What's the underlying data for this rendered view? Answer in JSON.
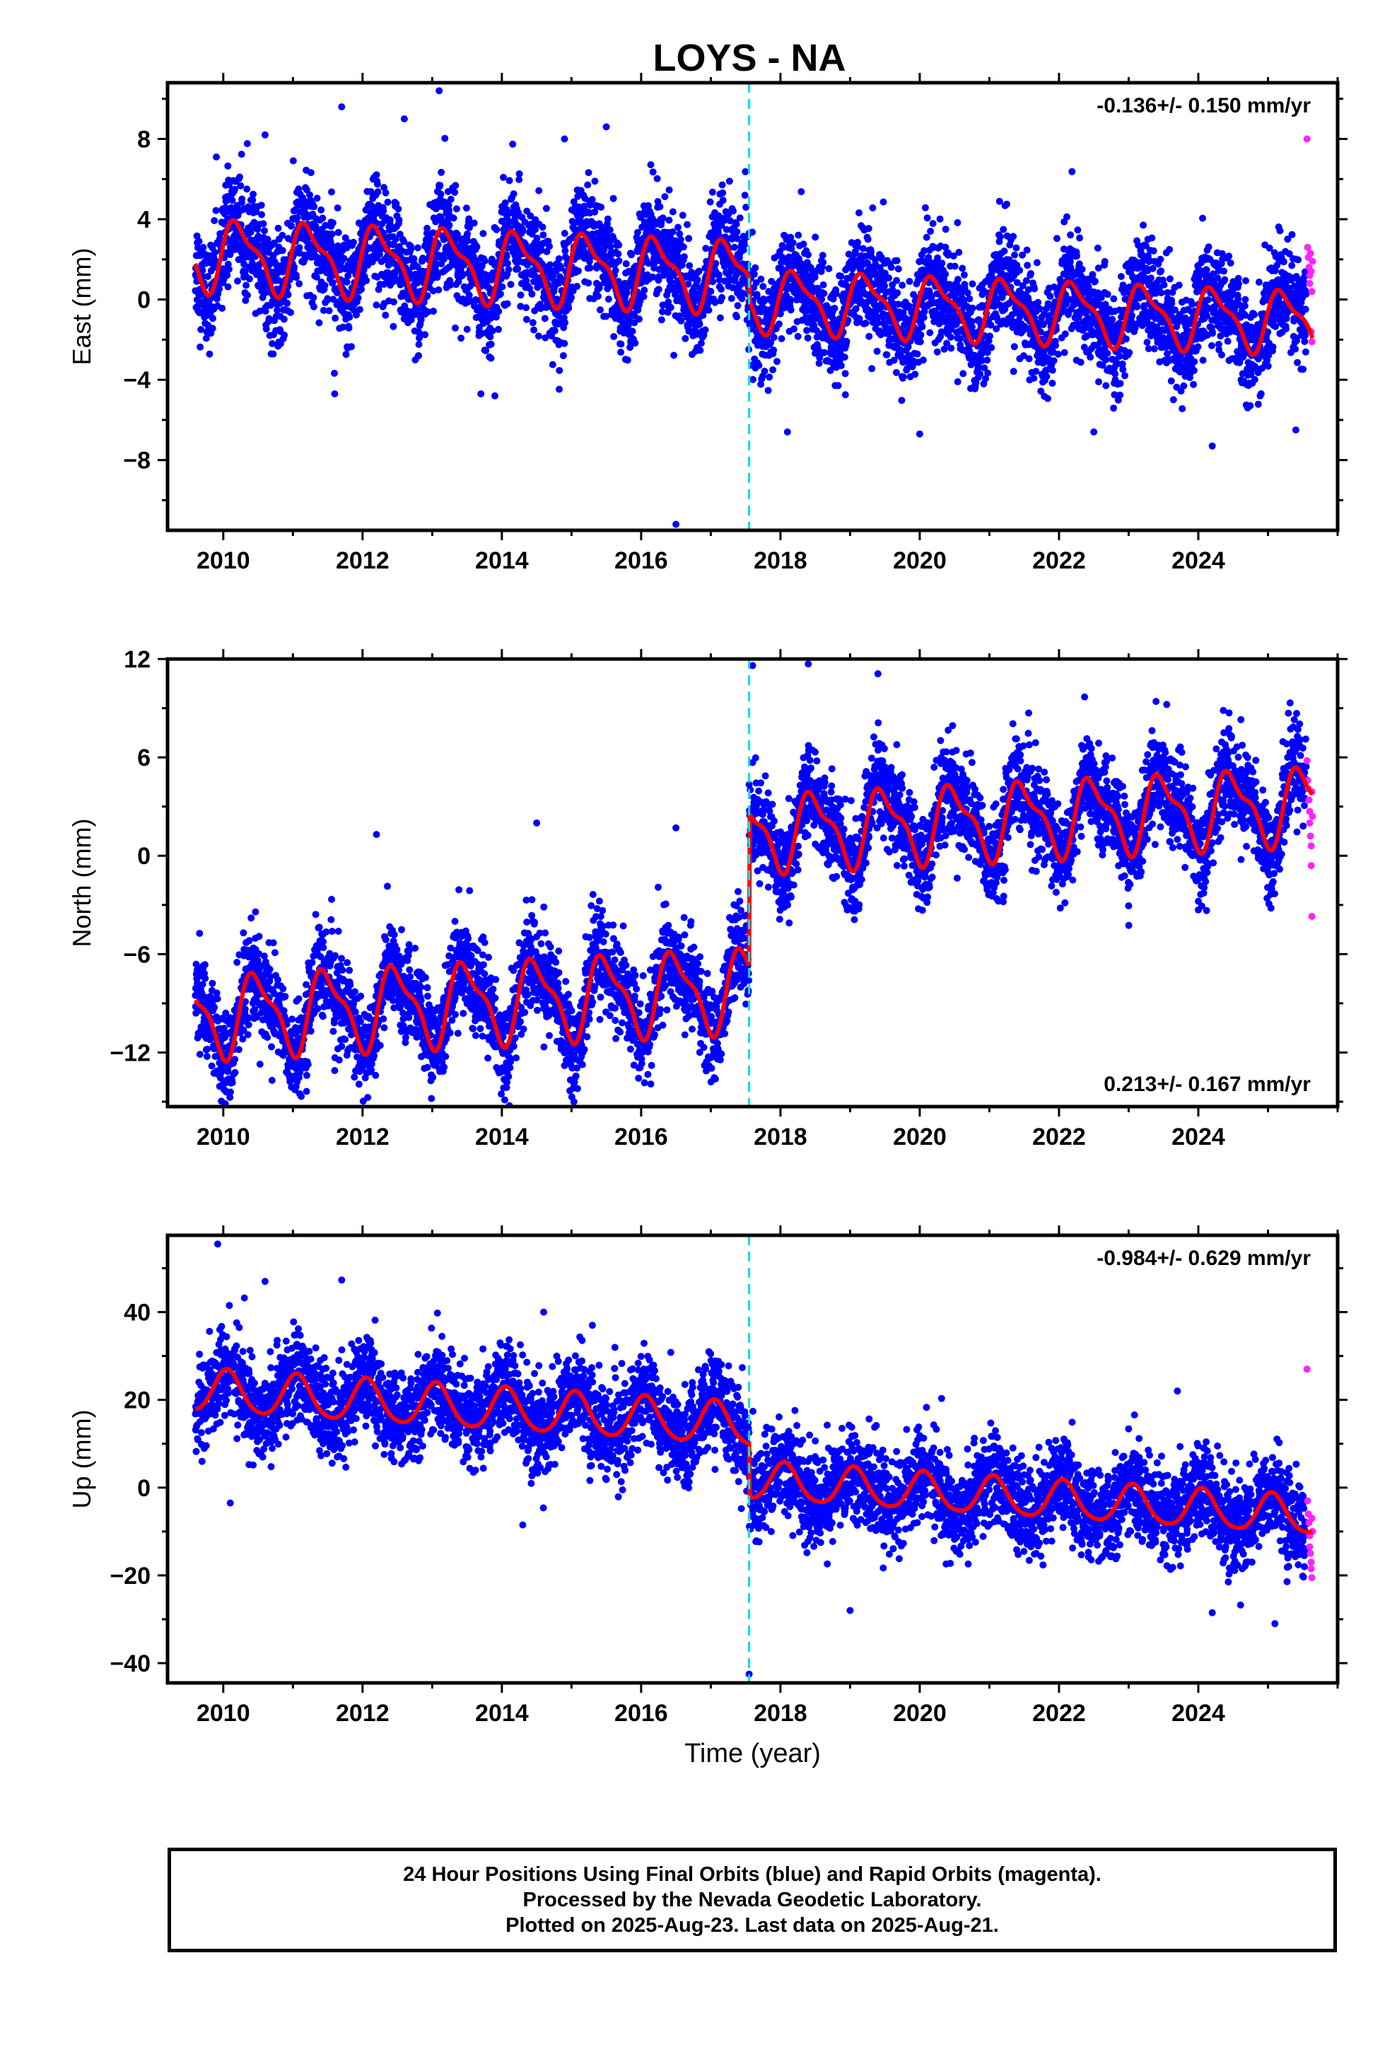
{
  "title": "LOYS - NA",
  "colors": {
    "final_orbits": "#0000ff",
    "rapid_orbits": "#ff22ff",
    "model_fit": "#ff0000",
    "offset_line": "#00e0e0",
    "frame": "#000000"
  },
  "x_axis_label": "Time (year)",
  "footer": {
    "line1": "24 Hour Positions Using Final Orbits (blue) and Rapid Orbits (magenta).",
    "line2": "Processed by the Nevada Geodetic Laboratory.",
    "line3": "Plotted on 2025-Aug-23. Last data on 2025-Aug-21."
  },
  "chart_data": [
    {
      "type": "scatter",
      "ylabel": "East (mm)",
      "rate_label": "-0.136+/- 0.150 mm/yr",
      "rate_position": "top-right",
      "xlim": [
        2009.2,
        2026.0
      ],
      "ylim": [
        -11.5,
        10.8
      ],
      "xticks": [
        2010,
        2012,
        2014,
        2016,
        2018,
        2020,
        2022,
        2024
      ],
      "yticks": [
        -8,
        -4,
        0,
        4,
        8
      ],
      "ytick_labels": [
        "−8",
        "−4",
        "0",
        "4",
        "8"
      ],
      "data_start": 2009.6,
      "data_end": 2025.64,
      "rapid_start": 2025.55,
      "offset_epoch": 2017.55,
      "fit": {
        "before": {
          "intercept": 1.2,
          "slope": -0.136,
          "annual_amp": 1.6,
          "annual_phase": 0.1,
          "semiannual_amp": 0.6,
          "semiannual_phase": 0.6
        },
        "after": {
          "intercept": 0.0,
          "slope": -0.136,
          "annual_amp": 1.4,
          "annual_phase": 0.1,
          "semiannual_amp": 0.5,
          "semiannual_phase": 0.6
        },
        "step": 0.0
      },
      "scatter_sd": 1.3,
      "outliers": [
        {
          "x": 2009.9,
          "y": 7.1
        },
        {
          "x": 2010.6,
          "y": 8.2
        },
        {
          "x": 2011.7,
          "y": 9.6
        },
        {
          "x": 2012.6,
          "y": 9.0
        },
        {
          "x": 2013.1,
          "y": 10.4
        },
        {
          "x": 2014.9,
          "y": 8.0
        },
        {
          "x": 2015.5,
          "y": 8.6
        },
        {
          "x": 2016.5,
          "y": -11.2
        },
        {
          "x": 2011.6,
          "y": -4.7
        },
        {
          "x": 2013.9,
          "y": -4.8
        },
        {
          "x": 2018.1,
          "y": -6.6
        },
        {
          "x": 2024.2,
          "y": -7.3
        },
        {
          "x": 2020.0,
          "y": -6.7
        },
        {
          "x": 2022.5,
          "y": -6.6
        },
        {
          "x": 2025.4,
          "y": -6.5
        }
      ],
      "rapid_points": [
        {
          "x": 2025.56,
          "y": 8.0
        },
        {
          "x": 2025.57,
          "y": 2.6
        },
        {
          "x": 2025.58,
          "y": 2.1
        },
        {
          "x": 2025.59,
          "y": 1.6
        },
        {
          "x": 2025.6,
          "y": 1.2
        },
        {
          "x": 2025.6,
          "y": 0.8
        },
        {
          "x": 2025.61,
          "y": 2.3
        },
        {
          "x": 2025.62,
          "y": 1.4
        },
        {
          "x": 2025.62,
          "y": -1.6
        },
        {
          "x": 2025.63,
          "y": -2.1
        },
        {
          "x": 2025.63,
          "y": 0.4
        },
        {
          "x": 2025.64,
          "y": 1.9
        }
      ]
    },
    {
      "type": "scatter",
      "ylabel": "North (mm)",
      "rate_label": "0.213+/- 0.167 mm/yr",
      "rate_position": "bottom-right",
      "xlim": [
        2009.2,
        2026.0
      ],
      "ylim": [
        -15.3,
        12.0
      ],
      "xticks": [
        2010,
        2012,
        2014,
        2016,
        2018,
        2020,
        2022,
        2024
      ],
      "yticks": [
        -12,
        -6,
        0,
        6,
        12
      ],
      "ytick_labels": [
        "−12",
        "−6",
        "0",
        "6",
        "12"
      ],
      "data_start": 2009.6,
      "data_end": 2025.64,
      "rapid_start": 2025.55,
      "offset_epoch": 2017.55,
      "fit": {
        "before": {
          "intercept": -8.1,
          "slope": 0.213,
          "annual_amp": 2.3,
          "annual_phase": -1.5,
          "semiannual_amp": 0.8,
          "semiannual_phase": -2.6
        },
        "after": {
          "intercept": 1.4,
          "slope": 0.213,
          "annual_amp": 2.1,
          "annual_phase": -1.5,
          "semiannual_amp": 0.8,
          "semiannual_phase": -2.6
        },
        "step": 8.0
      },
      "scatter_sd": 1.4,
      "outliers": [
        {
          "x": 2010.0,
          "y": -13.9
        },
        {
          "x": 2010.7,
          "y": -13.7
        },
        {
          "x": 2011.6,
          "y": -13.1
        },
        {
          "x": 2012.2,
          "y": 1.3
        },
        {
          "x": 2014.5,
          "y": 2.0
        },
        {
          "x": 2014.9,
          "y": -12.8
        },
        {
          "x": 2016.5,
          "y": 1.7
        },
        {
          "x": 2017.6,
          "y": 11.6
        },
        {
          "x": 2018.4,
          "y": 11.7
        },
        {
          "x": 2019.4,
          "y": 11.1
        },
        {
          "x": 2021.2,
          "y": -2.8
        },
        {
          "x": 2024.0,
          "y": -3.3
        }
      ],
      "rapid_points": [
        {
          "x": 2025.56,
          "y": 5.8
        },
        {
          "x": 2025.57,
          "y": 4.6
        },
        {
          "x": 2025.58,
          "y": 4.1
        },
        {
          "x": 2025.59,
          "y": 3.4
        },
        {
          "x": 2025.6,
          "y": 2.7
        },
        {
          "x": 2025.6,
          "y": 2.0
        },
        {
          "x": 2025.61,
          "y": 1.2
        },
        {
          "x": 2025.62,
          "y": 0.6
        },
        {
          "x": 2025.62,
          "y": -0.6
        },
        {
          "x": 2025.63,
          "y": -3.7
        },
        {
          "x": 2025.63,
          "y": 3.9
        },
        {
          "x": 2025.64,
          "y": 2.4
        }
      ]
    },
    {
      "type": "scatter",
      "ylabel": "Up (mm)",
      "rate_label": "-0.984+/- 0.629 mm/yr",
      "rate_position": "top-right",
      "xlim": [
        2009.2,
        2026.0
      ],
      "ylim": [
        -44.5,
        57.5
      ],
      "xticks": [
        2010,
        2012,
        2014,
        2016,
        2018,
        2020,
        2022,
        2024
      ],
      "yticks": [
        -40,
        -20,
        0,
        20,
        40
      ],
      "ytick_labels": [
        "−40",
        "−20",
        "0",
        "20",
        "40"
      ],
      "x_axis_title": true,
      "data_start": 2009.6,
      "data_end": 2025.64,
      "rapid_start": 2025.55,
      "offset_epoch": 2017.55,
      "fit": {
        "before": {
          "intercept": 14.3,
          "slope": -0.984,
          "annual_amp": 4.8,
          "annual_phase": 1.2,
          "semiannual_amp": 0.6,
          "semiannual_phase": 1.0
        },
        "after": {
          "intercept": 1.5,
          "slope": -0.984,
          "annual_amp": 4.3,
          "annual_phase": 1.2,
          "semiannual_amp": 0.6,
          "semiannual_phase": 1.0
        },
        "step": -11.0
      },
      "scatter_sd": 5.2,
      "outliers": [
        {
          "x": 2009.92,
          "y": 55.5
        },
        {
          "x": 2010.6,
          "y": 47.0
        },
        {
          "x": 2011.7,
          "y": 47.3
        },
        {
          "x": 2014.6,
          "y": 40.0
        },
        {
          "x": 2015.3,
          "y": 37.0
        },
        {
          "x": 2017.55,
          "y": -42.5
        },
        {
          "x": 2023.7,
          "y": 22.0
        },
        {
          "x": 2010.1,
          "y": -3.5
        },
        {
          "x": 2014.3,
          "y": -8.5
        },
        {
          "x": 2019.0,
          "y": -28.0
        },
        {
          "x": 2024.2,
          "y": -28.5
        },
        {
          "x": 2025.1,
          "y": -31.0
        }
      ],
      "rapid_points": [
        {
          "x": 2025.56,
          "y": 27.0
        },
        {
          "x": 2025.57,
          "y": -3.0
        },
        {
          "x": 2025.58,
          "y": -6.0
        },
        {
          "x": 2025.59,
          "y": -8.0
        },
        {
          "x": 2025.6,
          "y": -11.0
        },
        {
          "x": 2025.6,
          "y": -13.5
        },
        {
          "x": 2025.61,
          "y": -15.0
        },
        {
          "x": 2025.62,
          "y": -17.0
        },
        {
          "x": 2025.62,
          "y": -18.5
        },
        {
          "x": 2025.63,
          "y": -20.5
        },
        {
          "x": 2025.63,
          "y": -7.0
        },
        {
          "x": 2025.64,
          "y": -10.0
        }
      ]
    }
  ]
}
